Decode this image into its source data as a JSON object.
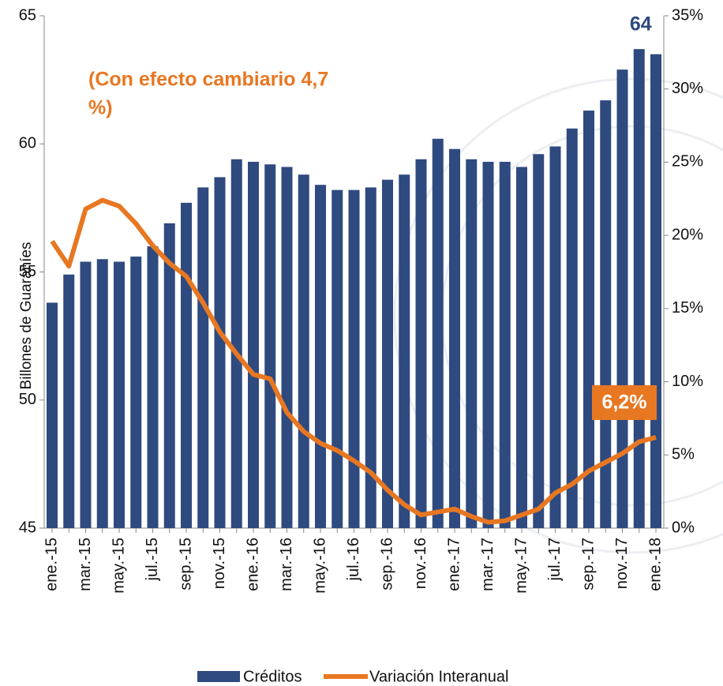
{
  "chart_data": {
    "type": "bar_line",
    "y_label": "Billones de Guaraníes",
    "note_lines": [
      "(Con efecto cambiario  4,7",
      "%)"
    ],
    "bar_label": "64",
    "line_label": "6,2%",
    "categories": [
      "ene.-15",
      null,
      "mar.-15",
      null,
      "may.-15",
      null,
      "jul.-15",
      null,
      "sep.-15",
      null,
      "nov.-15",
      null,
      "ene.-16",
      null,
      "mar.-16",
      null,
      "may.-16",
      null,
      "jul.-16",
      null,
      "sep.-16",
      null,
      "nov.-16",
      null,
      "ene.-17",
      null,
      "mar.-17",
      null,
      "may.-17",
      null,
      "jul.-17",
      null,
      "sep.-17",
      null,
      "nov.-17",
      null,
      "ene.-18"
    ],
    "series": [
      {
        "name": "Créditos",
        "color": "#2e4a7f",
        "kind": "bar",
        "axis": "y",
        "values": [
          53.8,
          54.9,
          55.4,
          55.5,
          55.4,
          55.6,
          56.0,
          56.9,
          57.7,
          58.3,
          58.7,
          59.4,
          59.3,
          59.2,
          59.1,
          58.8,
          58.4,
          58.2,
          58.2,
          58.3,
          58.6,
          58.8,
          59.4,
          60.2,
          59.8,
          59.4,
          59.3,
          59.3,
          59.1,
          59.6,
          59.9,
          60.6,
          61.3,
          61.7,
          62.9,
          63.7,
          63.5
        ]
      },
      {
        "name": "Variación  Interanual",
        "color": "#e87722",
        "kind": "line",
        "axis": "y2",
        "values": [
          19.6,
          17.9,
          21.8,
          22.4,
          22.0,
          20.8,
          19.3,
          18.1,
          17.2,
          15.4,
          13.4,
          11.9,
          10.5,
          10.2,
          7.9,
          6.6,
          5.8,
          5.3,
          4.6,
          3.8,
          2.6,
          1.6,
          0.9,
          1.1,
          1.3,
          0.8,
          0.4,
          0.5,
          0.9,
          1.3,
          2.4,
          3.0,
          3.9,
          4.5,
          5.1,
          5.9,
          6.2
        ]
      }
    ],
    "ylim": [
      45,
      65
    ],
    "yticks": [
      45,
      50,
      55,
      60,
      65
    ],
    "y2lim": [
      0,
      35
    ],
    "y2ticks": [
      {
        "value": 0,
        "label": "0%"
      },
      {
        "value": 5,
        "label": "5%"
      },
      {
        "value": 10,
        "label": "10%"
      },
      {
        "value": 15,
        "label": "15%"
      },
      {
        "value": 20,
        "label": "20%"
      },
      {
        "value": 25,
        "label": "25%"
      },
      {
        "value": 30,
        "label": "30%"
      },
      {
        "value": 35,
        "label": "35%"
      }
    ]
  }
}
